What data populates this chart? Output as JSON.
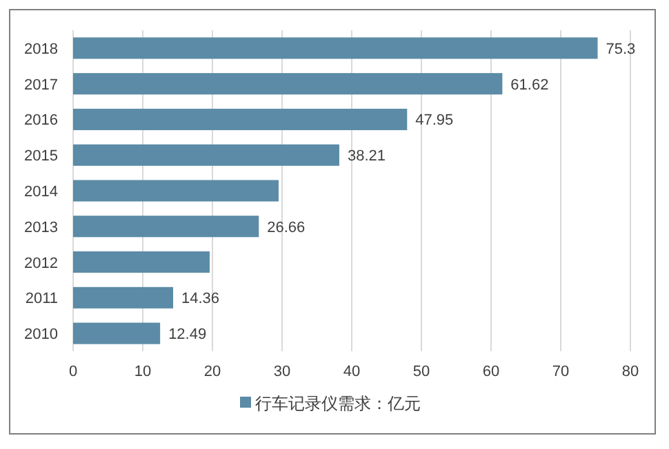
{
  "chart_data": {
    "type": "bar",
    "orientation": "horizontal",
    "categories": [
      "2018",
      "2017",
      "2016",
      "2015",
      "2014",
      "2013",
      "2012",
      "2011",
      "2010"
    ],
    "series": [
      {
        "name": "行车记录仪需求：亿元",
        "color": "#5b8ba6",
        "values": [
          75.3,
          61.62,
          47.95,
          38.21,
          29.5,
          26.66,
          19.6,
          14.36,
          12.49
        ],
        "value_labels": [
          "75.3",
          "61.62",
          "47.95",
          "38.21",
          null,
          "26.66",
          null,
          "14.36",
          "12.49"
        ]
      }
    ],
    "xlim": [
      0,
      80
    ],
    "xticks": [
      0,
      10,
      20,
      30,
      40,
      50,
      60,
      70,
      80
    ],
    "grid": "x",
    "legend": "bottom"
  }
}
